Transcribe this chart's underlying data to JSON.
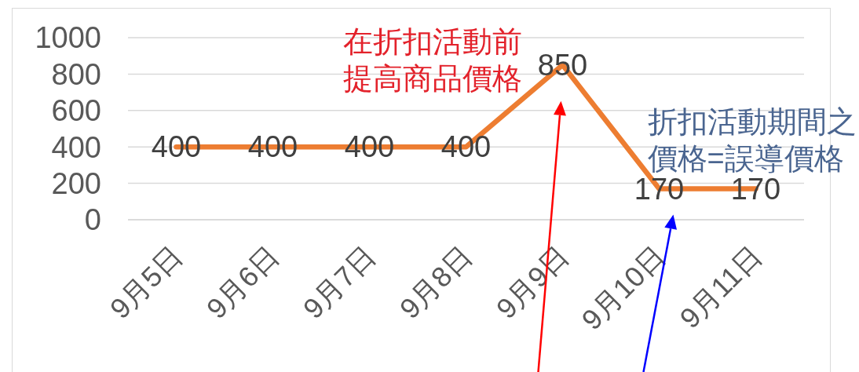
{
  "chart_data": {
    "type": "line",
    "categories": [
      "9月5日",
      "9月6日",
      "9月7日",
      "9月8日",
      "9月9日",
      "9月10日",
      "9月11日"
    ],
    "values": [
      400,
      400,
      400,
      400,
      850,
      170,
      170
    ],
    "color": "#ed7d31",
    "ylim": [
      0,
      1000
    ],
    "yticks": [
      0,
      200,
      400,
      600,
      800,
      1000
    ],
    "grid": "y",
    "data_labels": true,
    "marker": "none",
    "line_style": "solid",
    "annotations": [
      {
        "text": "在折扣活動前提高商品價格",
        "x": "9月9日",
        "y": 850
      },
      {
        "text": "折扣活動期間之價格=誤導價格",
        "x": "9月10日",
        "y": 170
      }
    ]
  }
}
